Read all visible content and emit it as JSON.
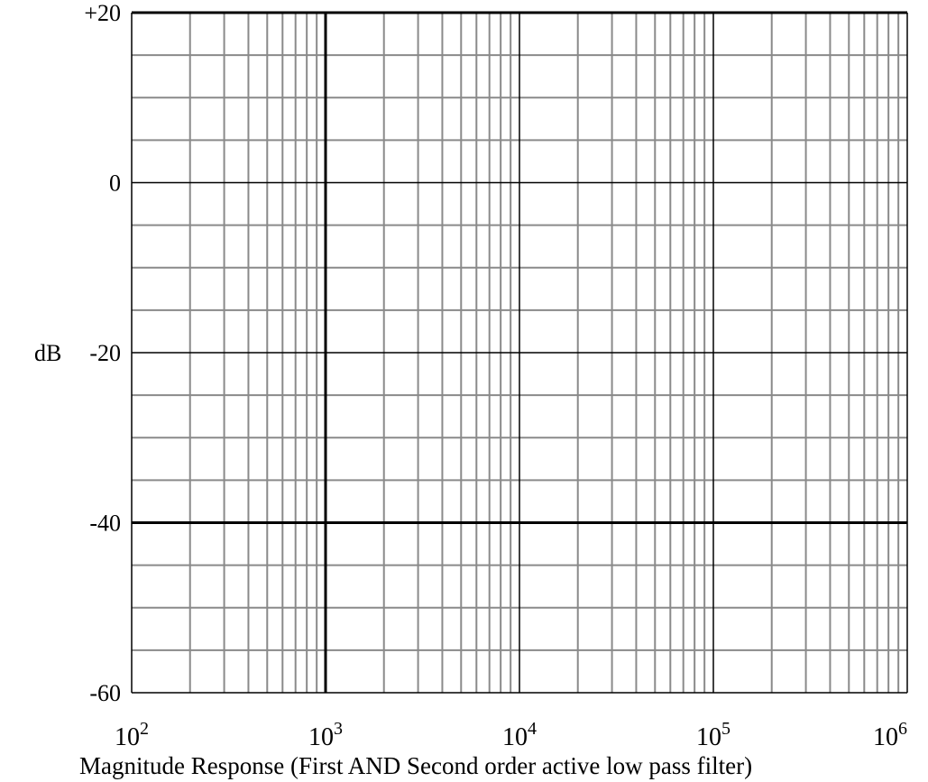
{
  "chart_data": {
    "type": "line",
    "title": "",
    "caption": "Magnitude Response (First AND Second order active low pass filter)",
    "ylabel": "dB",
    "xlabel": "",
    "x_scale": "log",
    "xlim": [
      100,
      1000000
    ],
    "ylim": [
      -60,
      20
    ],
    "y_ticks": [
      20,
      0,
      -20,
      -40,
      -60
    ],
    "y_tick_labels": [
      "+20",
      "0",
      "-20",
      "-40",
      "-60"
    ],
    "x_ticks": [
      {
        "base": "10",
        "exp": "2"
      },
      {
        "base": "10",
        "exp": "3"
      },
      {
        "base": "10",
        "exp": "4"
      },
      {
        "base": "10",
        "exp": "5"
      },
      {
        "base": "10",
        "exp": "6"
      }
    ],
    "grid": true,
    "series": []
  },
  "colors": {
    "major_grid": "#000000",
    "minor_grid": "#8a8a8a",
    "background": "#ffffff"
  }
}
